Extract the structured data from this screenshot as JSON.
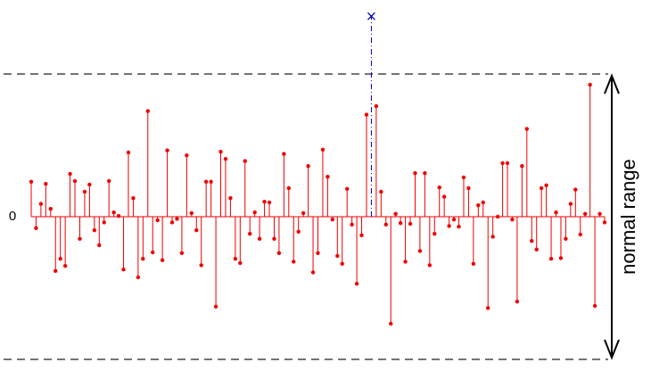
{
  "chart_data": {
    "type": "stem",
    "annotation": "normal range",
    "ylim": [
      -2.275,
      3.0375
    ],
    "yticks": [
      0
    ],
    "reference_lines": [
      -2,
      2
    ],
    "series": [
      {
        "color": "#ee0000",
        "marker": "dot",
        "linestyle": "solid",
        "values": [
          0.49,
          -0.16,
          0.18,
          0.46,
          0.11,
          -0.76,
          -0.59,
          -0.69,
          0.6,
          0.5,
          -0.31,
          0.35,
          0.45,
          -0.19,
          -0.4,
          -0.08,
          0.5,
          0.06,
          0.01,
          -0.74,
          0.9,
          0.26,
          -0.85,
          -0.59,
          1.48,
          -0.5,
          -0.05,
          -0.61,
          0.93,
          -0.08,
          -0.03,
          -0.51,
          0.86,
          0.05,
          -0.19,
          -0.68,
          0.49,
          0.49,
          -1.26,
          0.91,
          0.81,
          0.26,
          -0.59,
          -0.65,
          0.78,
          -0.24,
          0.06,
          -0.31,
          0.21,
          0.2,
          -0.31,
          -0.51,
          0.88,
          0.4,
          -0.63,
          -0.21,
          0.05,
          0.71,
          -0.78,
          -0.51,
          0.94,
          0.56,
          -0.04,
          -0.55,
          -0.66,
          0.39,
          -0.11,
          -0.94,
          -0.26,
          1.43,
          null,
          1.55,
          0.35,
          -0.11,
          -1.5,
          0.04,
          -0.09,
          -0.63,
          -0.1,
          0.61,
          -0.48,
          0.61,
          -0.68,
          -0.24,
          0.41,
          0.28,
          -0.13,
          -0.04,
          -0.14,
          0.55,
          0.4,
          -0.66,
          0.16,
          0.2,
          -1.28,
          -0.28,
          0,
          0.75,
          0.75,
          -0.04,
          -1.19,
          0.71,
          1.23,
          -0.34,
          -0.46,
          0.4,
          0.44,
          -0.59,
          0.06,
          -0.58,
          -0.31,
          0.18,
          0.38,
          -0.25,
          0.04,
          1.85,
          -1.25,
          0.04,
          -0.08
        ]
      },
      {
        "color": "#0000cc",
        "marker": "x",
        "linestyle": "dashdot",
        "values": [
          null,
          null,
          null,
          null,
          null,
          null,
          null,
          null,
          null,
          null,
          null,
          null,
          null,
          null,
          null,
          null,
          null,
          null,
          null,
          null,
          null,
          null,
          null,
          null,
          null,
          null,
          null,
          null,
          null,
          null,
          null,
          null,
          null,
          null,
          null,
          null,
          null,
          null,
          null,
          null,
          null,
          null,
          null,
          null,
          null,
          null,
          null,
          null,
          null,
          null,
          null,
          null,
          null,
          null,
          null,
          null,
          null,
          null,
          null,
          null,
          null,
          null,
          null,
          null,
          null,
          null,
          null,
          null,
          null,
          null,
          2.81,
          null,
          null,
          null,
          null,
          null,
          null,
          null,
          null,
          null,
          null,
          null,
          null,
          null,
          null,
          null,
          null,
          null,
          null,
          null,
          null,
          null,
          null,
          null,
          null,
          null,
          null,
          null,
          null,
          null,
          null,
          null,
          null,
          null,
          null,
          null,
          null,
          null,
          null,
          null,
          null,
          null,
          null,
          null,
          null,
          null,
          null,
          null,
          null
        ]
      }
    ]
  }
}
